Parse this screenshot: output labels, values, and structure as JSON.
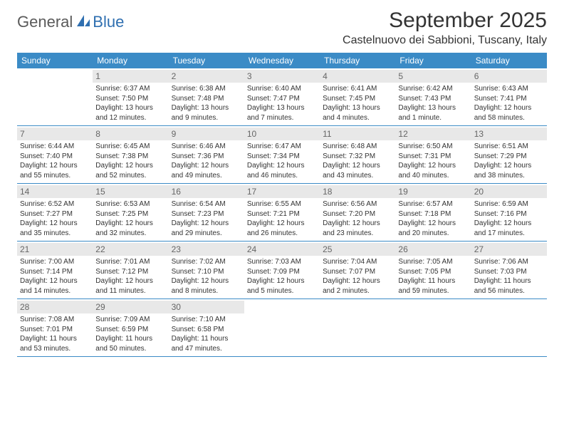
{
  "logo": {
    "general": "General",
    "blue": "Blue"
  },
  "title": "September 2025",
  "location": "Castelnuovo dei Sabbioni, Tuscany, Italy",
  "colors": {
    "header_bg": "#3b8bc6",
    "header_text": "#ffffff",
    "daynum_bg": "#e8e8e8",
    "daynum_text": "#666666",
    "border": "#3b8bc6",
    "logo_general": "#5a5a5a",
    "logo_blue": "#2f6fb0"
  },
  "typography": {
    "title_fontsize": 30,
    "location_fontsize": 16,
    "dow_fontsize": 12,
    "daynum_fontsize": 12,
    "body_fontsize": 10
  },
  "dow": [
    "Sunday",
    "Monday",
    "Tuesday",
    "Wednesday",
    "Thursday",
    "Friday",
    "Saturday"
  ],
  "weeks": [
    [
      {
        "num": "",
        "sunrise": "",
        "sunset": "",
        "daylight": ""
      },
      {
        "num": "1",
        "sunrise": "Sunrise: 6:37 AM",
        "sunset": "Sunset: 7:50 PM",
        "daylight": "Daylight: 13 hours and 12 minutes."
      },
      {
        "num": "2",
        "sunrise": "Sunrise: 6:38 AM",
        "sunset": "Sunset: 7:48 PM",
        "daylight": "Daylight: 13 hours and 9 minutes."
      },
      {
        "num": "3",
        "sunrise": "Sunrise: 6:40 AM",
        "sunset": "Sunset: 7:47 PM",
        "daylight": "Daylight: 13 hours and 7 minutes."
      },
      {
        "num": "4",
        "sunrise": "Sunrise: 6:41 AM",
        "sunset": "Sunset: 7:45 PM",
        "daylight": "Daylight: 13 hours and 4 minutes."
      },
      {
        "num": "5",
        "sunrise": "Sunrise: 6:42 AM",
        "sunset": "Sunset: 7:43 PM",
        "daylight": "Daylight: 13 hours and 1 minute."
      },
      {
        "num": "6",
        "sunrise": "Sunrise: 6:43 AM",
        "sunset": "Sunset: 7:41 PM",
        "daylight": "Daylight: 12 hours and 58 minutes."
      }
    ],
    [
      {
        "num": "7",
        "sunrise": "Sunrise: 6:44 AM",
        "sunset": "Sunset: 7:40 PM",
        "daylight": "Daylight: 12 hours and 55 minutes."
      },
      {
        "num": "8",
        "sunrise": "Sunrise: 6:45 AM",
        "sunset": "Sunset: 7:38 PM",
        "daylight": "Daylight: 12 hours and 52 minutes."
      },
      {
        "num": "9",
        "sunrise": "Sunrise: 6:46 AM",
        "sunset": "Sunset: 7:36 PM",
        "daylight": "Daylight: 12 hours and 49 minutes."
      },
      {
        "num": "10",
        "sunrise": "Sunrise: 6:47 AM",
        "sunset": "Sunset: 7:34 PM",
        "daylight": "Daylight: 12 hours and 46 minutes."
      },
      {
        "num": "11",
        "sunrise": "Sunrise: 6:48 AM",
        "sunset": "Sunset: 7:32 PM",
        "daylight": "Daylight: 12 hours and 43 minutes."
      },
      {
        "num": "12",
        "sunrise": "Sunrise: 6:50 AM",
        "sunset": "Sunset: 7:31 PM",
        "daylight": "Daylight: 12 hours and 40 minutes."
      },
      {
        "num": "13",
        "sunrise": "Sunrise: 6:51 AM",
        "sunset": "Sunset: 7:29 PM",
        "daylight": "Daylight: 12 hours and 38 minutes."
      }
    ],
    [
      {
        "num": "14",
        "sunrise": "Sunrise: 6:52 AM",
        "sunset": "Sunset: 7:27 PM",
        "daylight": "Daylight: 12 hours and 35 minutes."
      },
      {
        "num": "15",
        "sunrise": "Sunrise: 6:53 AM",
        "sunset": "Sunset: 7:25 PM",
        "daylight": "Daylight: 12 hours and 32 minutes."
      },
      {
        "num": "16",
        "sunrise": "Sunrise: 6:54 AM",
        "sunset": "Sunset: 7:23 PM",
        "daylight": "Daylight: 12 hours and 29 minutes."
      },
      {
        "num": "17",
        "sunrise": "Sunrise: 6:55 AM",
        "sunset": "Sunset: 7:21 PM",
        "daylight": "Daylight: 12 hours and 26 minutes."
      },
      {
        "num": "18",
        "sunrise": "Sunrise: 6:56 AM",
        "sunset": "Sunset: 7:20 PM",
        "daylight": "Daylight: 12 hours and 23 minutes."
      },
      {
        "num": "19",
        "sunrise": "Sunrise: 6:57 AM",
        "sunset": "Sunset: 7:18 PM",
        "daylight": "Daylight: 12 hours and 20 minutes."
      },
      {
        "num": "20",
        "sunrise": "Sunrise: 6:59 AM",
        "sunset": "Sunset: 7:16 PM",
        "daylight": "Daylight: 12 hours and 17 minutes."
      }
    ],
    [
      {
        "num": "21",
        "sunrise": "Sunrise: 7:00 AM",
        "sunset": "Sunset: 7:14 PM",
        "daylight": "Daylight: 12 hours and 14 minutes."
      },
      {
        "num": "22",
        "sunrise": "Sunrise: 7:01 AM",
        "sunset": "Sunset: 7:12 PM",
        "daylight": "Daylight: 12 hours and 11 minutes."
      },
      {
        "num": "23",
        "sunrise": "Sunrise: 7:02 AM",
        "sunset": "Sunset: 7:10 PM",
        "daylight": "Daylight: 12 hours and 8 minutes."
      },
      {
        "num": "24",
        "sunrise": "Sunrise: 7:03 AM",
        "sunset": "Sunset: 7:09 PM",
        "daylight": "Daylight: 12 hours and 5 minutes."
      },
      {
        "num": "25",
        "sunrise": "Sunrise: 7:04 AM",
        "sunset": "Sunset: 7:07 PM",
        "daylight": "Daylight: 12 hours and 2 minutes."
      },
      {
        "num": "26",
        "sunrise": "Sunrise: 7:05 AM",
        "sunset": "Sunset: 7:05 PM",
        "daylight": "Daylight: 11 hours and 59 minutes."
      },
      {
        "num": "27",
        "sunrise": "Sunrise: 7:06 AM",
        "sunset": "Sunset: 7:03 PM",
        "daylight": "Daylight: 11 hours and 56 minutes."
      }
    ],
    [
      {
        "num": "28",
        "sunrise": "Sunrise: 7:08 AM",
        "sunset": "Sunset: 7:01 PM",
        "daylight": "Daylight: 11 hours and 53 minutes."
      },
      {
        "num": "29",
        "sunrise": "Sunrise: 7:09 AM",
        "sunset": "Sunset: 6:59 PM",
        "daylight": "Daylight: 11 hours and 50 minutes."
      },
      {
        "num": "30",
        "sunrise": "Sunrise: 7:10 AM",
        "sunset": "Sunset: 6:58 PM",
        "daylight": "Daylight: 11 hours and 47 minutes."
      },
      {
        "num": "",
        "sunrise": "",
        "sunset": "",
        "daylight": ""
      },
      {
        "num": "",
        "sunrise": "",
        "sunset": "",
        "daylight": ""
      },
      {
        "num": "",
        "sunrise": "",
        "sunset": "",
        "daylight": ""
      },
      {
        "num": "",
        "sunrise": "",
        "sunset": "",
        "daylight": ""
      }
    ]
  ]
}
